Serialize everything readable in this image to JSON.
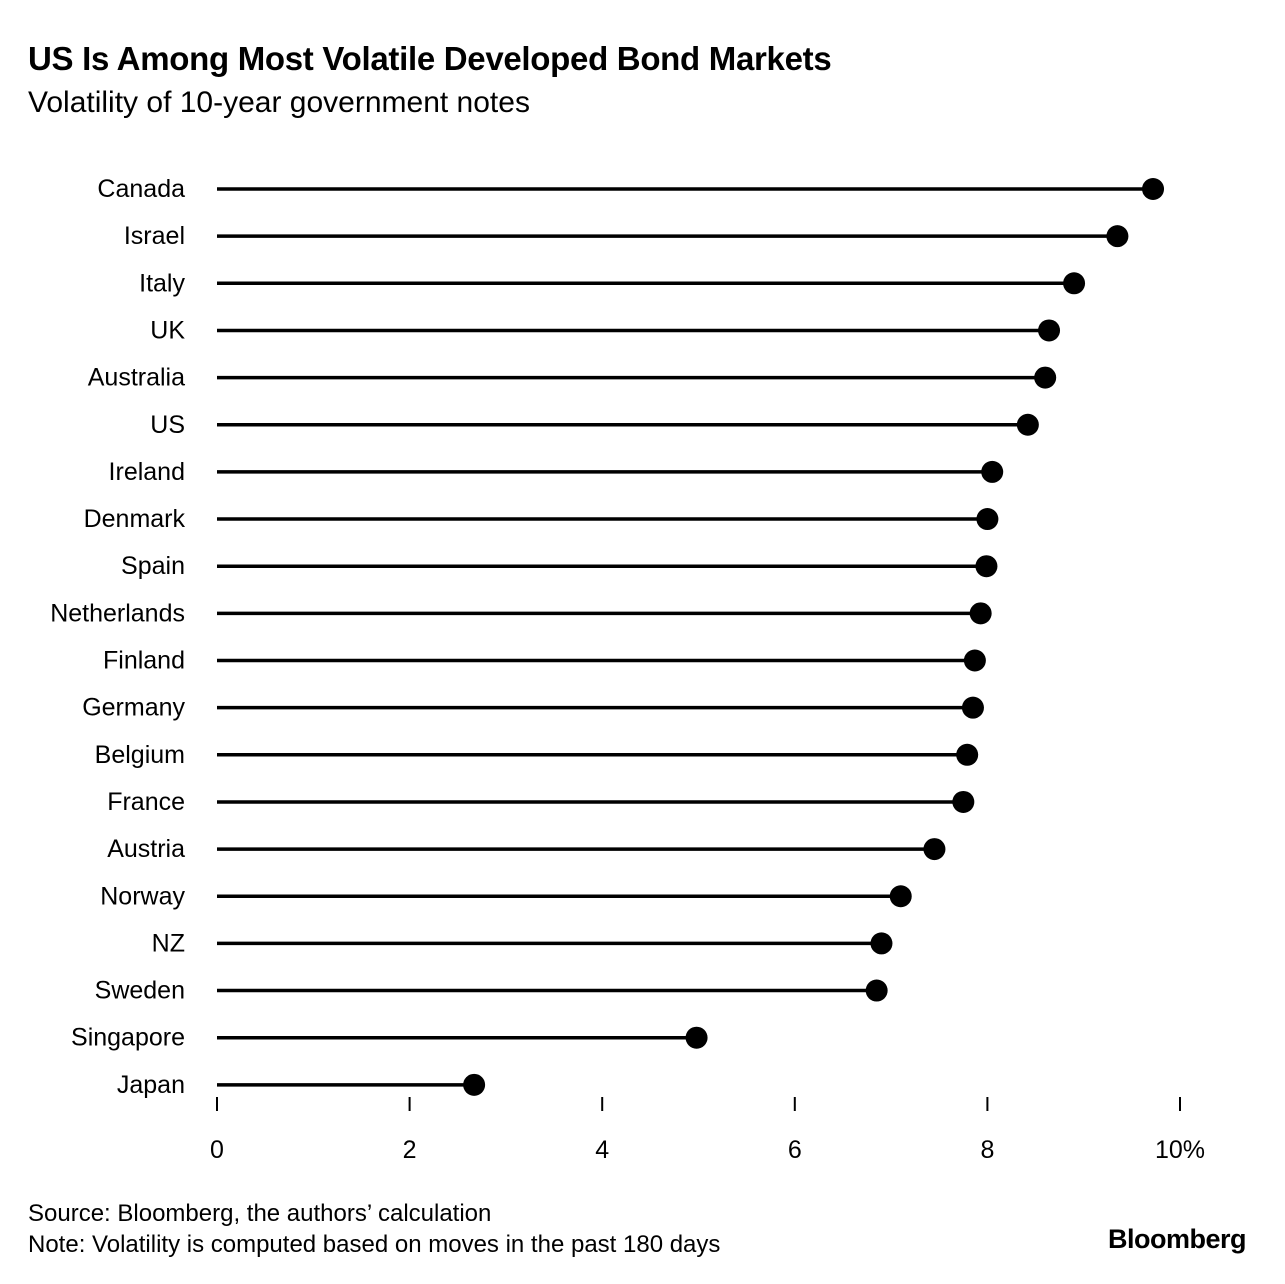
{
  "chart_data": {
    "type": "lollipop",
    "title": "US Is Among Most Volatile Developed Bond Markets",
    "subtitle": "Volatility of 10-year government notes",
    "categories": [
      "Canada",
      "Israel",
      "Italy",
      "UK",
      "Australia",
      "US",
      "Ireland",
      "Denmark",
      "Spain",
      "Netherlands",
      "Finland",
      "Germany",
      "Belgium",
      "France",
      "Austria",
      "Norway",
      "NZ",
      "Sweden",
      "Singapore",
      "Japan"
    ],
    "values": [
      9.72,
      9.35,
      8.9,
      8.64,
      8.6,
      8.42,
      8.05,
      8.0,
      7.99,
      7.93,
      7.87,
      7.85,
      7.79,
      7.75,
      7.45,
      7.1,
      6.9,
      6.85,
      4.98,
      2.67
    ],
    "xlim": [
      0,
      10
    ],
    "xticks": [
      "0",
      "2",
      "4",
      "6",
      "8",
      "10%"
    ],
    "xlabel": "",
    "ylabel": "",
    "grid": false,
    "legend": "none"
  },
  "footer": {
    "source": "Source: Bloomberg, the authors’ calculation",
    "note": "Note: Volatility is computed based on moves in the past 180 days"
  },
  "brand": "Bloomberg"
}
